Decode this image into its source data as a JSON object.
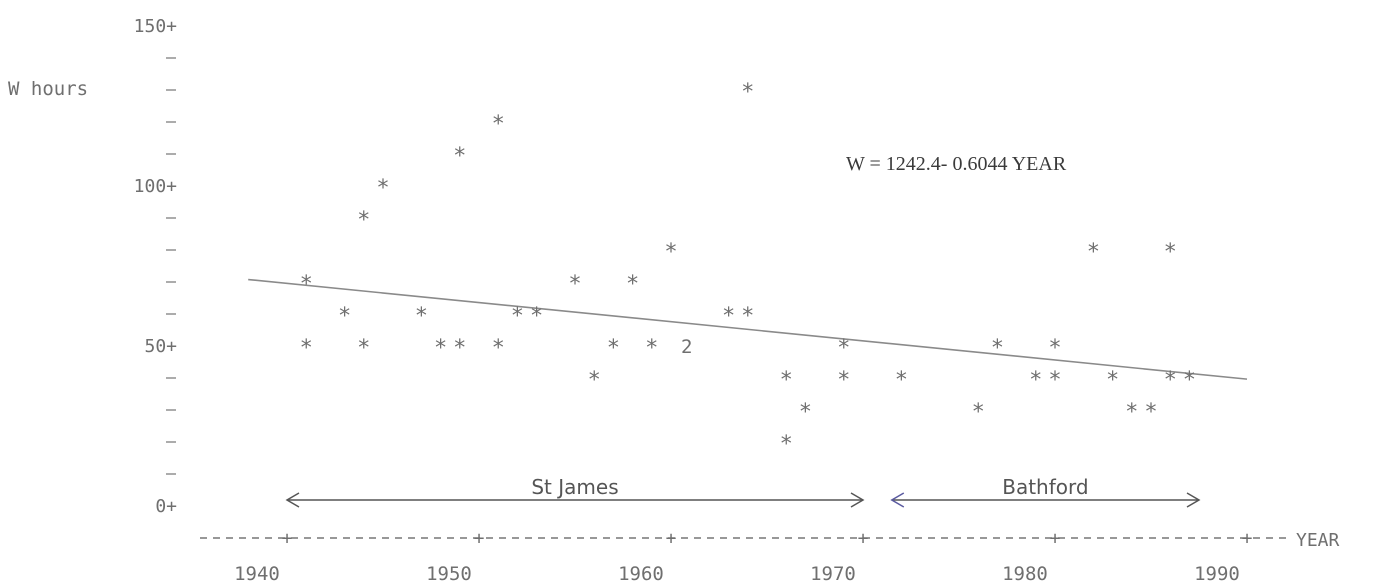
{
  "chart_data": {
    "type": "scatter",
    "ylabel": "W hours",
    "xlabel": "YEAR",
    "xlim": [
      1940,
      1990
    ],
    "ylim": [
      0,
      150
    ],
    "y_ticks": [
      "150+",
      "100+",
      "50+",
      "0+"
    ],
    "x_ticks": [
      "1940",
      "1950",
      "1960",
      "1970",
      "1980",
      "1990"
    ],
    "points": [
      {
        "x": 1941,
        "y": 70
      },
      {
        "x": 1941,
        "y": 50
      },
      {
        "x": 1943,
        "y": 60
      },
      {
        "x": 1944,
        "y": 90
      },
      {
        "x": 1944,
        "y": 50
      },
      {
        "x": 1945,
        "y": 100
      },
      {
        "x": 1947,
        "y": 60
      },
      {
        "x": 1948,
        "y": 50
      },
      {
        "x": 1949,
        "y": 110
      },
      {
        "x": 1949,
        "y": 50
      },
      {
        "x": 1951,
        "y": 120
      },
      {
        "x": 1951,
        "y": 50
      },
      {
        "x": 1952,
        "y": 60
      },
      {
        "x": 1953,
        "y": 60
      },
      {
        "x": 1955,
        "y": 70
      },
      {
        "x": 1956,
        "y": 40
      },
      {
        "x": 1957,
        "y": 50
      },
      {
        "x": 1958,
        "y": 70
      },
      {
        "x": 1959,
        "y": 50
      },
      {
        "x": 1960,
        "y": 80
      },
      {
        "x": 1963,
        "y": 60
      },
      {
        "x": 1964,
        "y": 60
      },
      {
        "x": 1964,
        "y": 130
      },
      {
        "x": 1966,
        "y": 40
      },
      {
        "x": 1966,
        "y": 20
      },
      {
        "x": 1967,
        "y": 30
      },
      {
        "x": 1969,
        "y": 50
      },
      {
        "x": 1969,
        "y": 40
      },
      {
        "x": 1972,
        "y": 40
      },
      {
        "x": 1976,
        "y": 30
      },
      {
        "x": 1977,
        "y": 50
      },
      {
        "x": 1979,
        "y": 40
      },
      {
        "x": 1980,
        "y": 40
      },
      {
        "x": 1980,
        "y": 50
      },
      {
        "x": 1982,
        "y": 80
      },
      {
        "x": 1983,
        "y": 40
      },
      {
        "x": 1984,
        "y": 30
      },
      {
        "x": 1985,
        "y": 30
      },
      {
        "x": 1986,
        "y": 80
      },
      {
        "x": 1986,
        "y": 40
      },
      {
        "x": 1987,
        "y": 40
      }
    ],
    "point_marker": "*",
    "multi_point_labels": [
      {
        "x": 1960,
        "y": 50,
        "label": "2"
      }
    ],
    "fit_line": {
      "intercept": 1242.4,
      "slope": -0.6044,
      "x_from": 1938.5,
      "x_to": 1990
    },
    "equation": "W = 1242.4- 0.6044 YEAR",
    "ranges": [
      {
        "label": "St James",
        "from": 1940,
        "to": 1970
      },
      {
        "label": "Bathford",
        "from": 1971.5,
        "to": 1987.5
      }
    ]
  }
}
